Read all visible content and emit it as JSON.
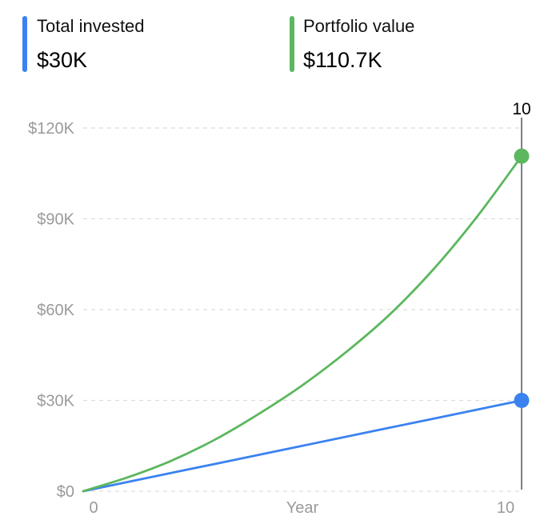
{
  "legend": [
    {
      "label": "Total invested",
      "value": "$30K",
      "color": "#3b82f0"
    },
    {
      "label": "Portfolio value",
      "value": "$110.7K",
      "color": "#5cb75e"
    }
  ],
  "chart_data": {
    "type": "line",
    "x": [
      0,
      1,
      2,
      3,
      4,
      5,
      6,
      7,
      8,
      9,
      10
    ],
    "series": [
      {
        "name": "Total invested",
        "color": "#3b82f0",
        "values": [
          0,
          3000,
          6000,
          9000,
          12000,
          15000,
          18000,
          21000,
          24000,
          27000,
          30000
        ]
      },
      {
        "name": "Portfolio value",
        "color": "#5cb75e",
        "values": [
          0,
          4500,
          10000,
          17000,
          25500,
          35000,
          46000,
          58500,
          73500,
          91000,
          110700
        ]
      }
    ],
    "xlabel": "Year",
    "xticks": [
      "0",
      "10"
    ],
    "yticks": [
      "$0",
      "$30K",
      "$60K",
      "$90K",
      "$120K"
    ],
    "ytick_values": [
      0,
      30000,
      60000,
      90000,
      120000
    ],
    "xlim": [
      0,
      10
    ],
    "ylim": [
      0,
      120000
    ],
    "grid": true,
    "selected": {
      "label": "10",
      "x": 10
    }
  }
}
